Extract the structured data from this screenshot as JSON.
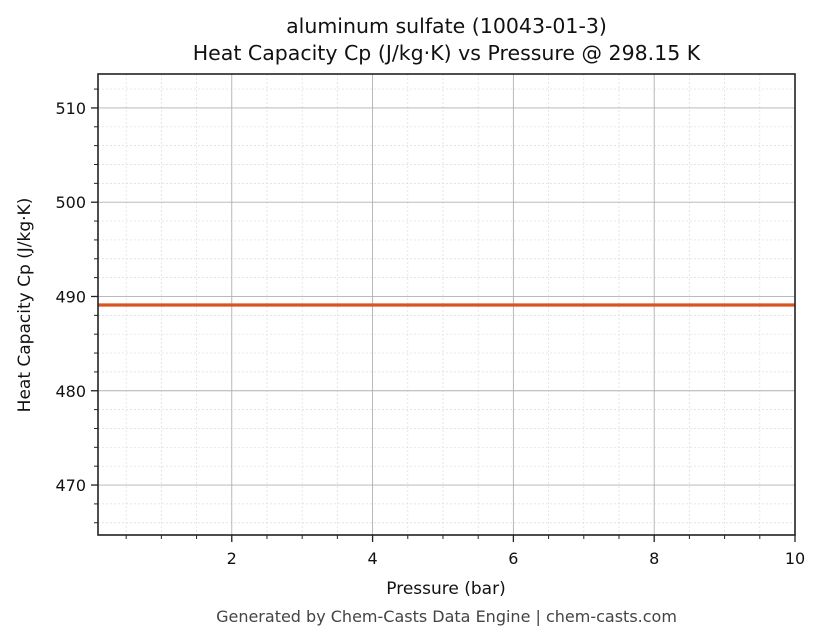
{
  "chart": {
    "title_line1": "aluminum sulfate (10043-01-3)",
    "title_line2": "Heat Capacity Cp (J/kg·K) vs Pressure @ 298.15 K",
    "xlabel": "Pressure (bar)",
    "ylabel": "Heat Capacity Cp (J/kg·K)",
    "footer": "Generated by Chem-Casts Data Engine | chem-casts.com",
    "line_color": "#d9541e"
  },
  "chart_data": {
    "type": "line",
    "title": "aluminum sulfate (10043-01-3) — Heat Capacity Cp (J/kg·K) vs Pressure @ 298.15 K",
    "xlabel": "Pressure (bar)",
    "ylabel": "Heat Capacity Cp (J/kg·K)",
    "xlim": [
      0.1,
      10
    ],
    "ylim": [
      464.7,
      513.6
    ],
    "x_ticks": [
      2,
      4,
      6,
      8,
      10
    ],
    "y_ticks": [
      470,
      480,
      490,
      500,
      510
    ],
    "grid": true,
    "legend": null,
    "series": [
      {
        "name": "Cp",
        "color": "#d9541e",
        "x": [
          0.1,
          1,
          2,
          3,
          4,
          5,
          6,
          7,
          8,
          9,
          10
        ],
        "y": [
          489.1,
          489.1,
          489.1,
          489.1,
          489.1,
          489.1,
          489.1,
          489.1,
          489.1,
          489.1,
          489.1
        ]
      }
    ]
  }
}
